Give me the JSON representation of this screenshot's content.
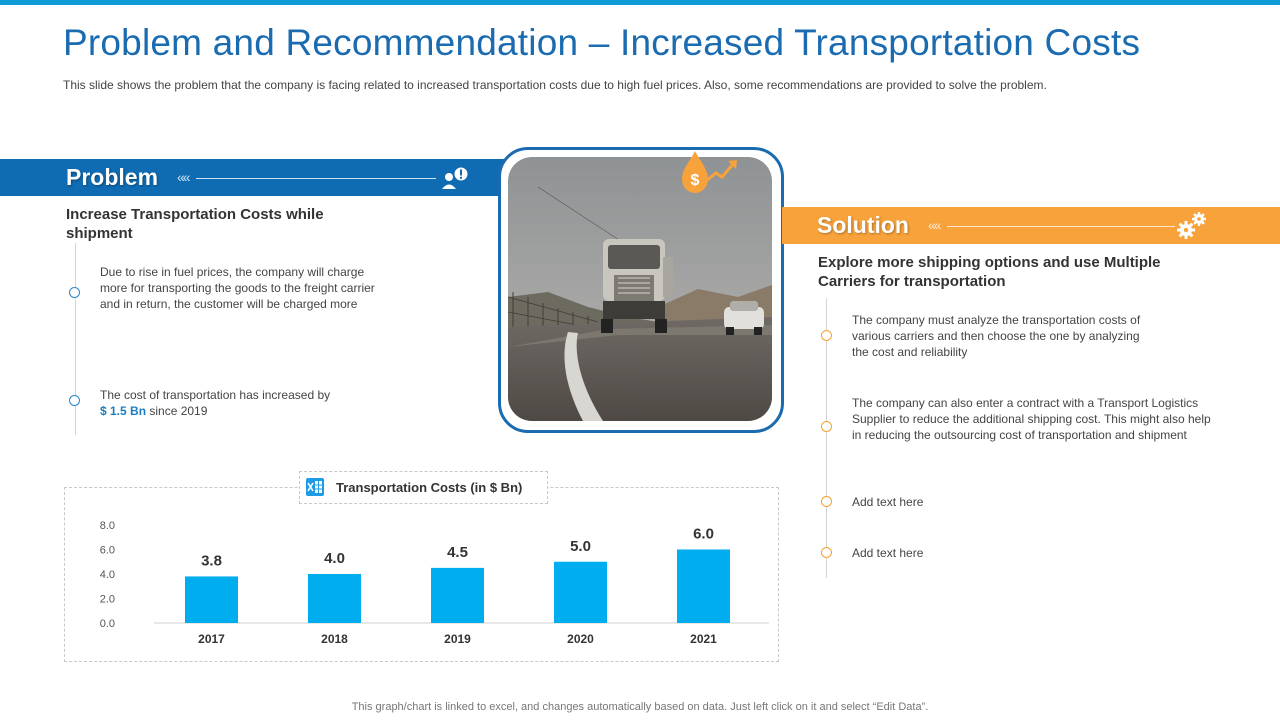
{
  "header": {
    "title": "Problem and Recommendation – Increased Transportation Costs",
    "subtitle": "This slide shows the problem that the company is facing related to increased transportation costs due to high fuel prices. Also, some recommendations are provided to solve the problem."
  },
  "problem": {
    "label": "Problem",
    "arrows": "««",
    "heading": "Increase Transportation Costs while shipment",
    "point1": "Due to rise in fuel prices, the company will charge more for transporting the goods to the freight carrier and in return, the customer will be charged more",
    "point2_prefix": "The cost of transportation has increased by ",
    "point2_value": "$ 1.5 Bn",
    "point2_suffix": " since 2019"
  },
  "solution": {
    "label": "Solution",
    "arrows": "««",
    "heading": "Explore more shipping options and use Multiple Carriers for transportation",
    "points": [
      "The company must analyze the transportation costs of various  carriers and then choose the one by analyzing the cost and reliability",
      "The company can also enter a contract with a Transport Logistics Supplier to reduce the additional shipping cost. This might also help in reducing the outsourcing cost of transportation and shipment",
      "Add text here",
      "Add text here"
    ]
  },
  "chart_data": {
    "type": "bar",
    "title": "Transportation Costs (in $ Bn)",
    "categories": [
      "2017",
      "2018",
      "2019",
      "2020",
      "2021"
    ],
    "values": [
      3.8,
      4.0,
      4.5,
      5.0,
      6.0
    ],
    "value_labels": [
      "3.8",
      "4.0",
      "4.5",
      "5.0",
      "6.0"
    ],
    "yticks": [
      "0.0",
      "2.0",
      "4.0",
      "6.0",
      "8.0"
    ],
    "ylim": [
      0,
      8
    ],
    "xlabel": "",
    "ylabel": "",
    "bar_color": "#00aeef"
  },
  "footer": {
    "note": "This graph/chart is linked to excel,  and changes automatically based on data. Just left click on it and select “Edit Data”."
  },
  "colors": {
    "primary_blue": "#0f6cb3",
    "accent_orange": "#f7a23b",
    "title_blue": "#1a6bb0"
  }
}
